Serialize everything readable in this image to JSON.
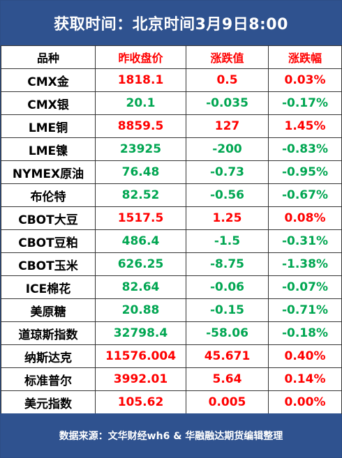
{
  "header": {
    "title": "获取时间：北京时间3月9日8:00"
  },
  "table": {
    "columns": [
      "品种",
      "昨收盘价",
      "涨跌值",
      "涨跌幅"
    ],
    "rows": [
      {
        "name": "CMX金",
        "close": "1818.1",
        "change": "0.5",
        "pct": "0.03%",
        "dir": "up"
      },
      {
        "name": "CMX银",
        "close": "20.1",
        "change": "-0.035",
        "pct": "-0.17%",
        "dir": "down"
      },
      {
        "name": "LME铜",
        "close": "8859.5",
        "change": "127",
        "pct": "1.45%",
        "dir": "up"
      },
      {
        "name": "LME镍",
        "close": "23925",
        "change": "-200",
        "pct": "-0.83%",
        "dir": "down"
      },
      {
        "name": "NYMEX原油",
        "close": "76.48",
        "change": "-0.73",
        "pct": "-0.95%",
        "dir": "down"
      },
      {
        "name": "布伦特",
        "close": "82.52",
        "change": "-0.56",
        "pct": "-0.67%",
        "dir": "down"
      },
      {
        "name": "CBOT大豆",
        "close": "1517.5",
        "change": "1.25",
        "pct": "0.08%",
        "dir": "up"
      },
      {
        "name": "CBOT豆粕",
        "close": "486.4",
        "change": "-1.5",
        "pct": "-0.31%",
        "dir": "down"
      },
      {
        "name": "CBOT玉米",
        "close": "626.25",
        "change": "-8.75",
        "pct": "-1.38%",
        "dir": "down"
      },
      {
        "name": "ICE棉花",
        "close": "82.64",
        "change": "-0.06",
        "pct": "-0.07%",
        "dir": "down"
      },
      {
        "name": "美原糖",
        "close": "20.88",
        "change": "-0.15",
        "pct": "-0.71%",
        "dir": "down"
      },
      {
        "name": "道琼斯指数",
        "close": "32798.4",
        "change": "-58.06",
        "pct": "-0.18%",
        "dir": "down"
      },
      {
        "name": "纳斯达克",
        "close": "11576.004",
        "change": "45.671",
        "pct": "0.40%",
        "dir": "up"
      },
      {
        "name": "标准普尔",
        "close": "3992.01",
        "change": "5.64",
        "pct": "0.14%",
        "dir": "up"
      },
      {
        "name": "美元指数",
        "close": "105.62",
        "change": "0.005",
        "pct": "0.00%",
        "dir": "up"
      }
    ]
  },
  "footer": {
    "source": "数据来源：文华财经wh6 & 华融融达期货编辑整理"
  },
  "colors": {
    "header_bg": "#2f528f",
    "up": "#ff0000",
    "down": "#00a651"
  }
}
